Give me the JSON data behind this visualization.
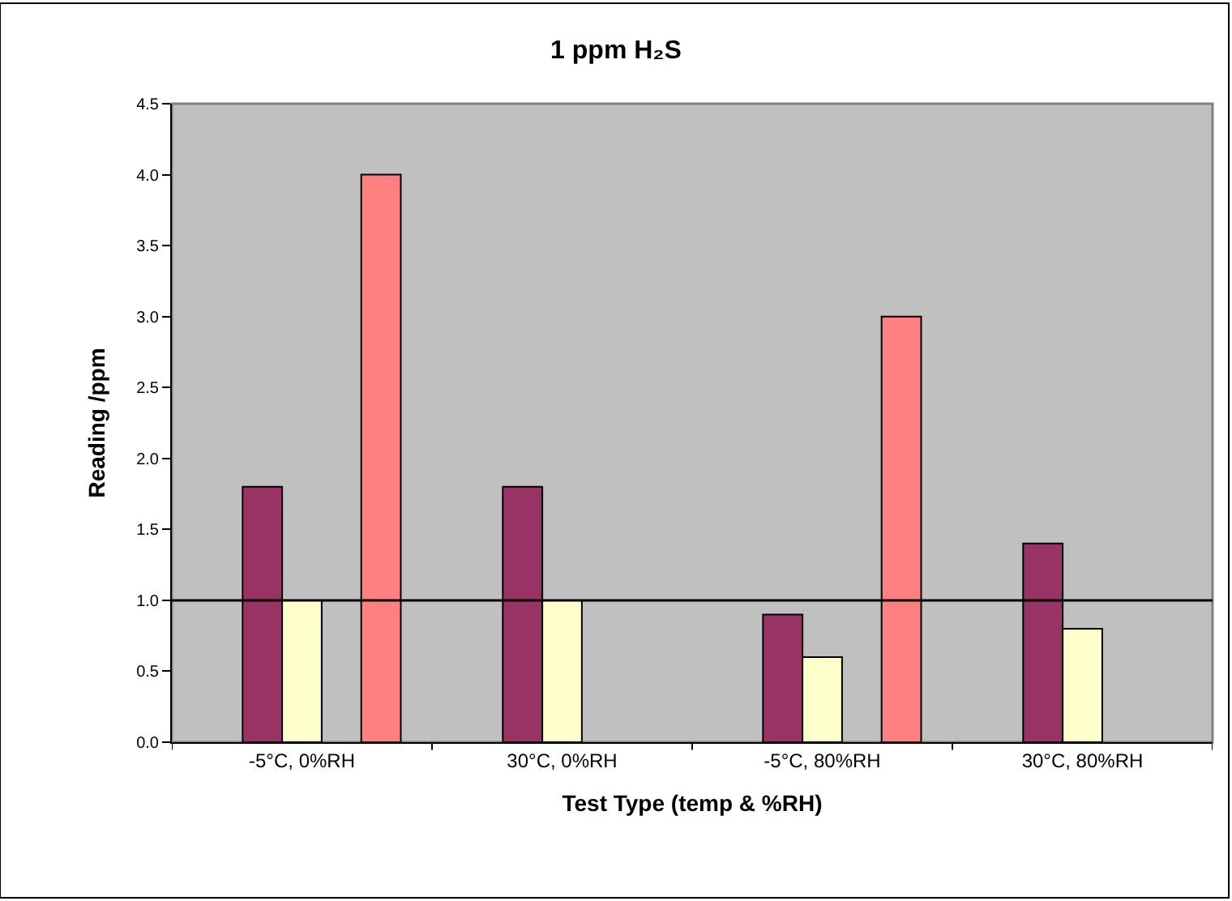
{
  "chart_data": {
    "type": "bar",
    "title": "1 ppm H₂S",
    "xlabel": "Test Type (temp & %RH)",
    "ylabel": "Reading /ppm",
    "categories": [
      "-5°C, 0%RH",
      "30°C, 0%RH",
      "-5°C, 80%RH",
      "30°C, 80%RH"
    ],
    "series": [
      {
        "values": [
          null,
          null,
          null,
          null
        ]
      },
      {
        "color": "#993366",
        "values": [
          1.8,
          1.8,
          0.9,
          1.4
        ]
      },
      {
        "color": "#ffffcc",
        "values": [
          1.0,
          1.0,
          0.6,
          0.8
        ]
      },
      {
        "values": [
          null,
          null,
          null,
          null
        ]
      },
      {
        "color": "#ff8080",
        "values": [
          4.0,
          null,
          3.0,
          null
        ]
      }
    ],
    "ylim": [
      0,
      4.5
    ],
    "yticks": [
      {
        "value": 0,
        "label": "0.0"
      },
      0.5,
      {
        "value": 1,
        "label": "1.0"
      },
      1.5,
      {
        "value": 2,
        "label": "2.0"
      },
      2.5,
      {
        "value": 3,
        "label": "3.0"
      },
      3.5,
      {
        "value": 4,
        "label": "4.0"
      },
      4.5
    ],
    "ref_lines": [
      {
        "axis": "y",
        "value": 1.0,
        "color": "#000000"
      }
    ],
    "grid": false
  }
}
